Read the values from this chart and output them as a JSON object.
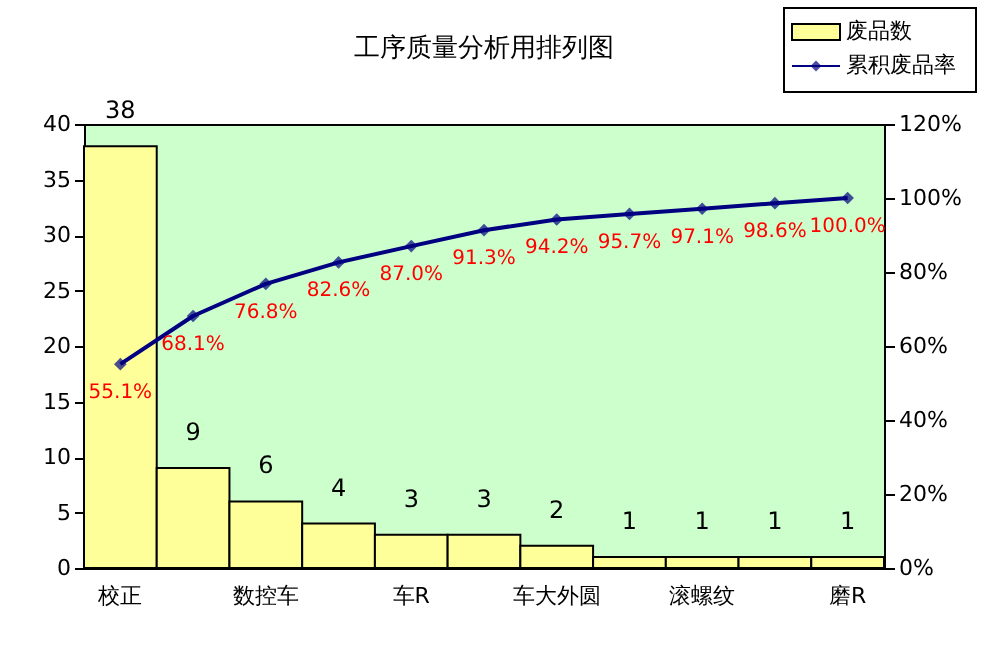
{
  "chart_data": {
    "type": "bar",
    "title": "工序质量分析用排列图",
    "categories": [
      "校正",
      null,
      "数控车",
      null,
      "车R",
      null,
      "车大外圆",
      null,
      "滚螺纹",
      null,
      "磨R"
    ],
    "series": [
      {
        "name": "废品数",
        "color": "#ffff99",
        "values": [
          38,
          9,
          6,
          4,
          3,
          3,
          2,
          1,
          1,
          1,
          1
        ]
      },
      {
        "name": "累积废品率",
        "type": "line",
        "axis": "y2",
        "color": "#000080",
        "marker": "diamond",
        "values": [
          55.1,
          68.1,
          76.8,
          82.6,
          87.0,
          91.3,
          94.2,
          95.7,
          97.1,
          98.6,
          100.0
        ],
        "value_labels": [
          "55.1%",
          "68.1%",
          "76.8%",
          "82.6%",
          "87.0%",
          "91.3%",
          "94.2%",
          "95.7%",
          "97.1%",
          "98.6%",
          "100.0%"
        ]
      }
    ],
    "data_labels": true,
    "ylim": [
      0,
      40
    ],
    "yticks": [
      0,
      5,
      10,
      15,
      20,
      25,
      30,
      35,
      40
    ],
    "y2lim": [
      0,
      120
    ],
    "y2ticks": [
      {
        "value": 0,
        "label": "0%"
      },
      {
        "value": 20,
        "label": "20%"
      },
      {
        "value": 40,
        "label": "40%"
      },
      {
        "value": 60,
        "label": "60%"
      },
      {
        "value": 80,
        "label": "80%"
      },
      {
        "value": 100,
        "label": "100%"
      },
      {
        "value": 120,
        "label": "120%"
      }
    ],
    "grid": false,
    "legend": "top right"
  }
}
